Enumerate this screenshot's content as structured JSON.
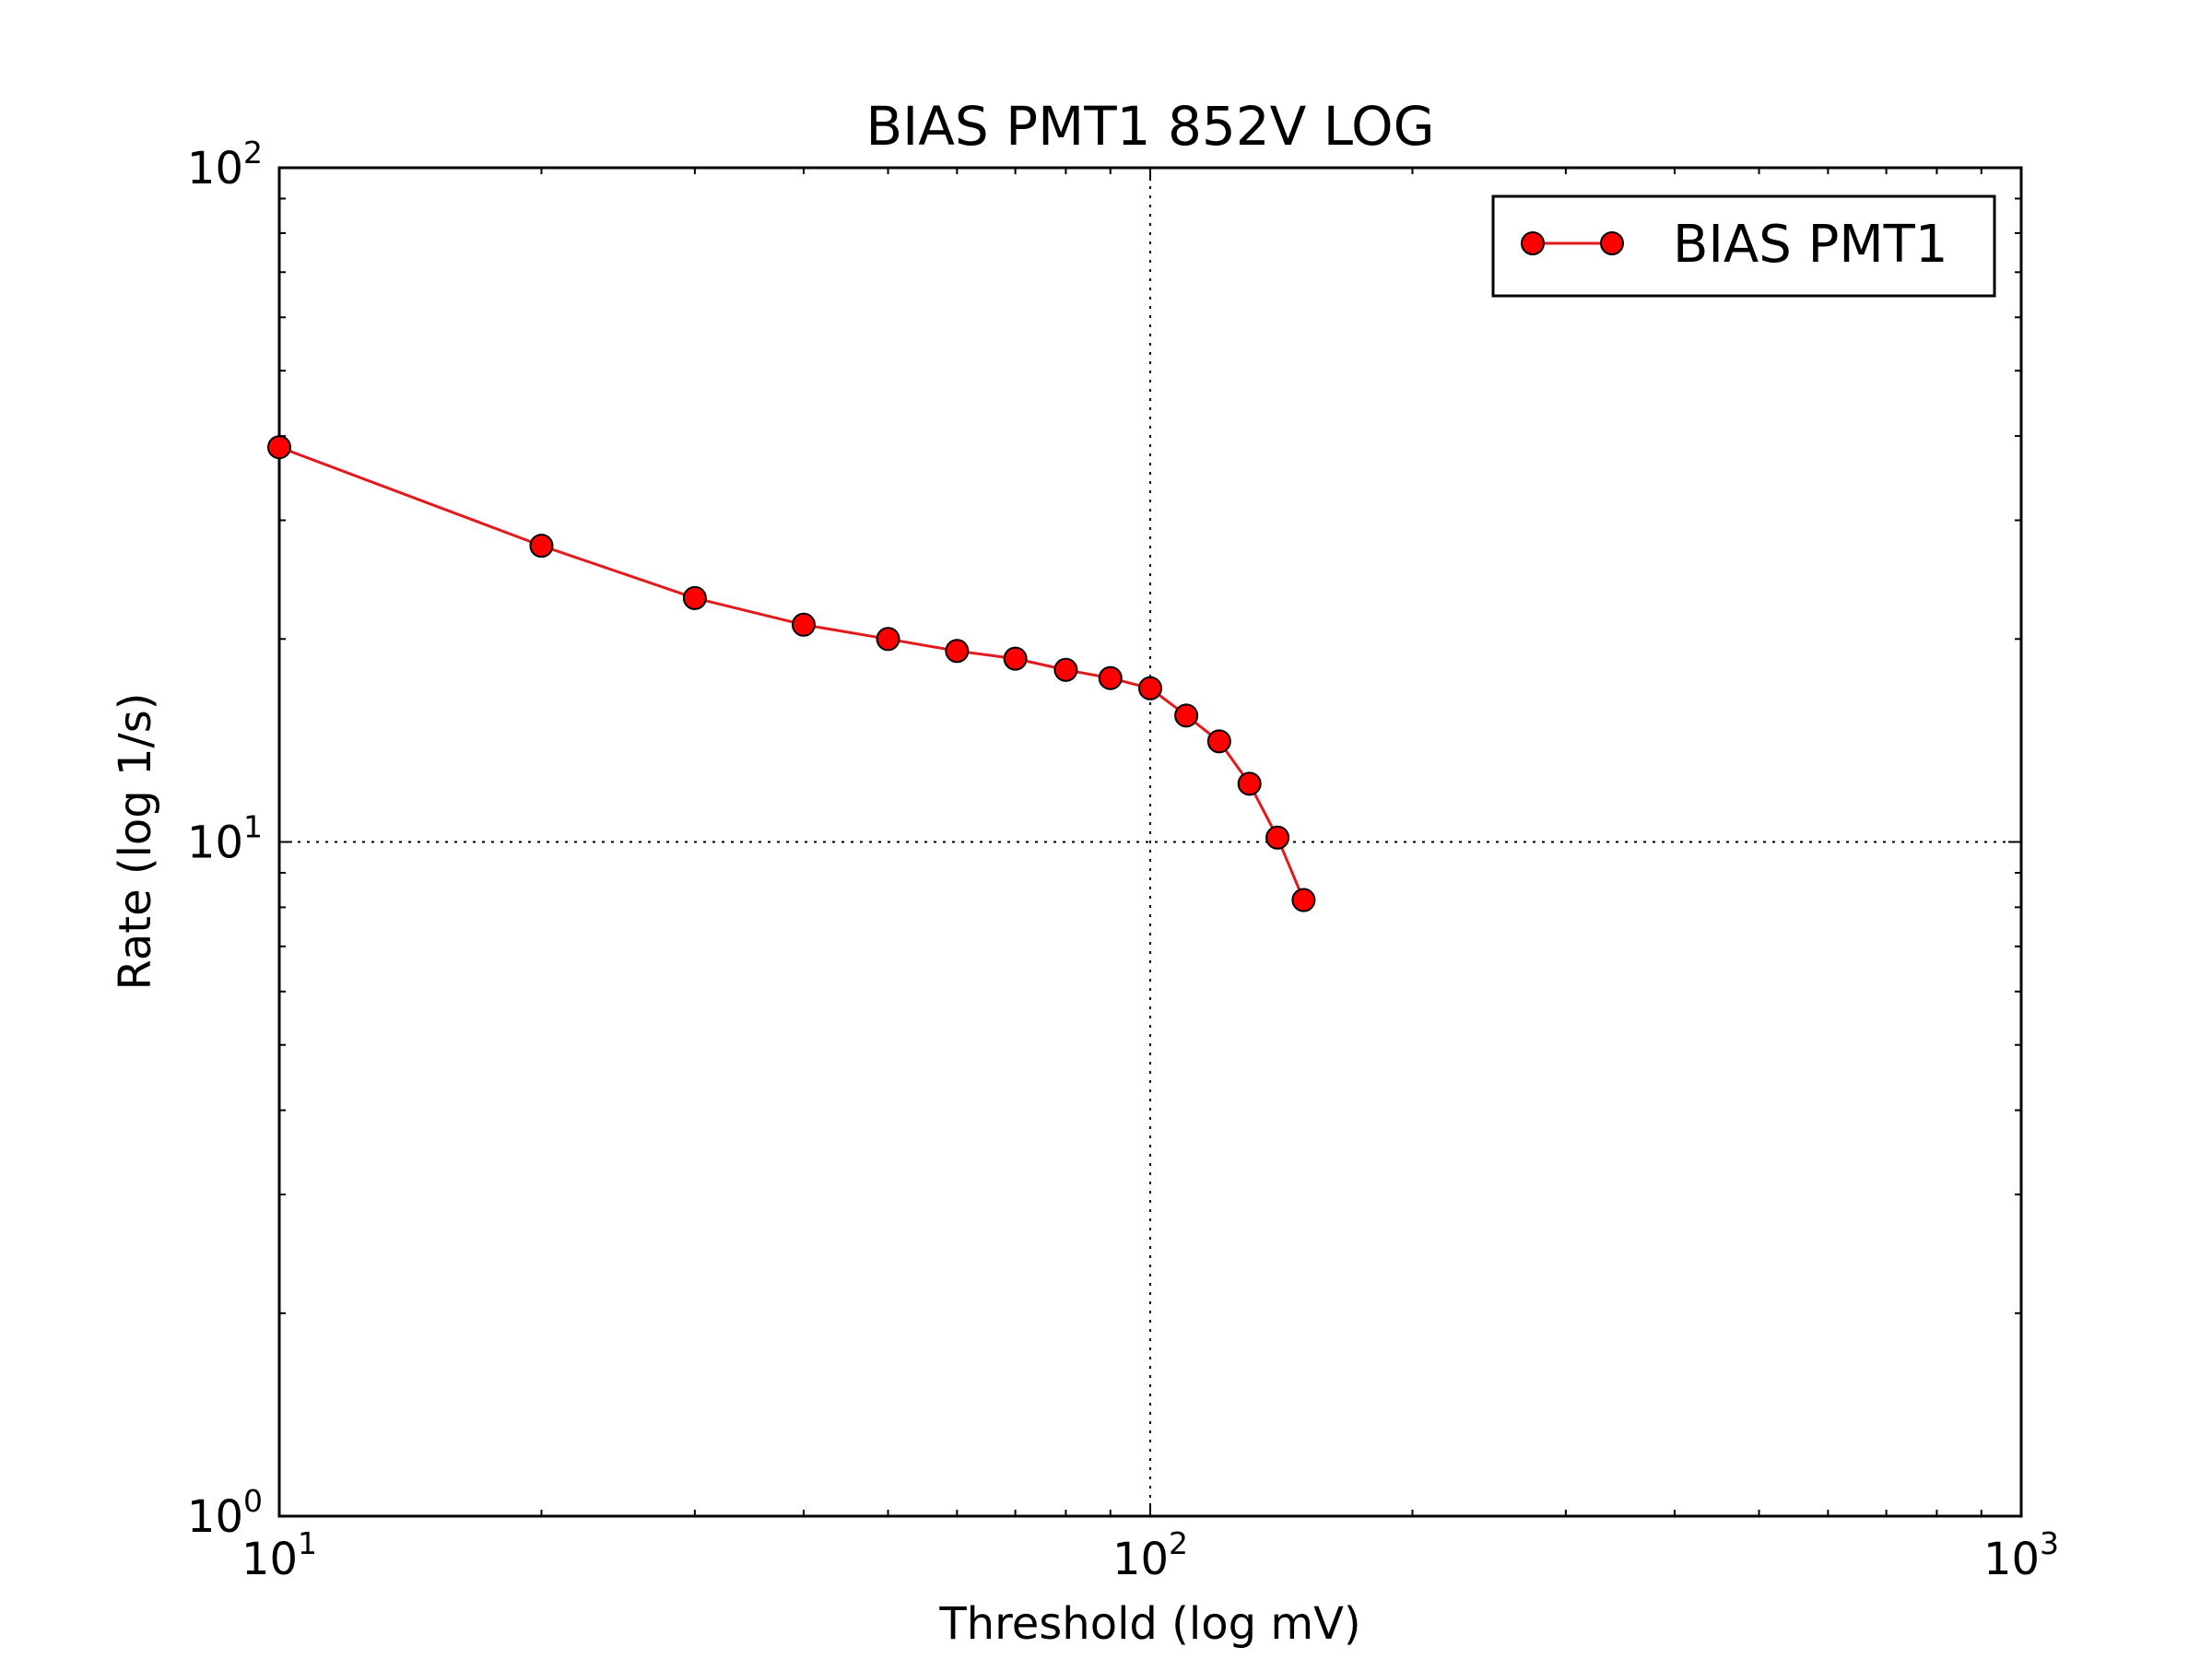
{
  "chart_data": {
    "type": "line",
    "title": "BIAS PMT1 852V LOG",
    "xlabel": "Threshold (log mV)",
    "ylabel": "Rate (log 1/s)",
    "xscale": "log",
    "yscale": "log",
    "xlim": [
      10,
      1000
    ],
    "ylim": [
      1,
      100
    ],
    "grid": "major, dotted",
    "legend_position": "top-right",
    "x_ticks": [
      {
        "base": "10",
        "exp": "1",
        "value": 10
      },
      {
        "base": "10",
        "exp": "2",
        "value": 100
      },
      {
        "base": "10",
        "exp": "3",
        "value": 1000
      }
    ],
    "y_ticks": [
      {
        "base": "10",
        "exp": "0",
        "value": 1
      },
      {
        "base": "10",
        "exp": "1",
        "value": 10
      },
      {
        "base": "10",
        "exp": "2",
        "value": 100
      }
    ],
    "series": [
      {
        "name": "BIAS PMT1",
        "color": "#ff0000",
        "line_color": "#e31a1c",
        "marker": "circle",
        "x": [
          10,
          20,
          30,
          40,
          50,
          60,
          70,
          80,
          90,
          100,
          110,
          120,
          130,
          140,
          150
        ],
        "y": [
          38.5,
          27.5,
          23.0,
          21.0,
          20.0,
          19.2,
          18.7,
          18.0,
          17.5,
          16.9,
          15.4,
          14.1,
          12.2,
          10.15,
          8.2
        ]
      }
    ]
  }
}
